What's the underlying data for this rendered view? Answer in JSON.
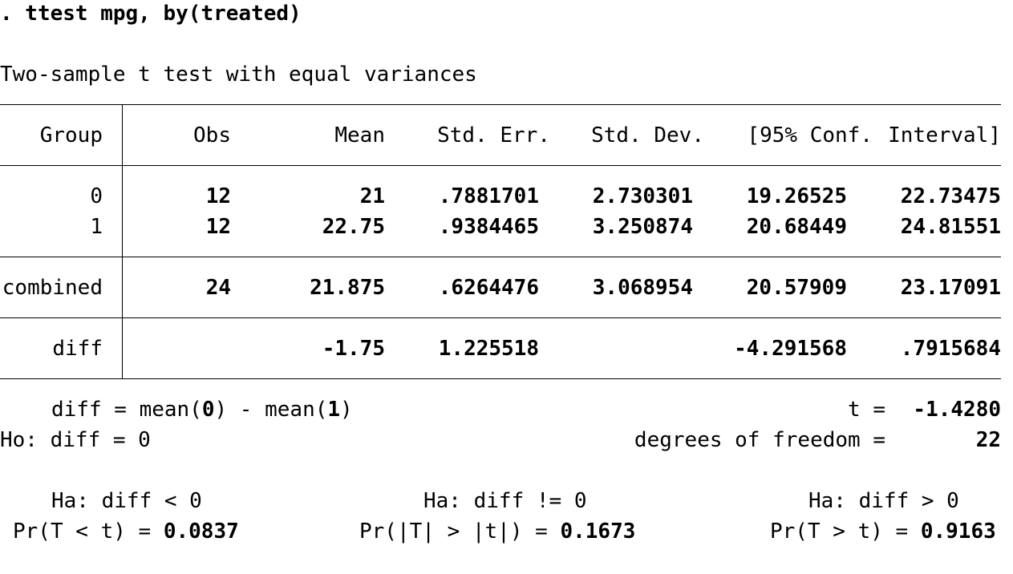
{
  "command": ". ttest mpg, by(treated)",
  "test_title": "Two-sample t test with equal variances",
  "table": {
    "headers": [
      "Group",
      "Obs",
      "Mean",
      "Std. Err.",
      "Std. Dev.",
      "[95% Conf.",
      "Interval]"
    ],
    "rows": [
      {
        "group": "0",
        "obs": "12",
        "mean": "21",
        "se": ".7881701",
        "sd": "2.730301",
        "ci_lo": "19.26525",
        "ci_hi": "22.73475"
      },
      {
        "group": "1",
        "obs": "12",
        "mean": "22.75",
        "se": ".9384465",
        "sd": "3.250874",
        "ci_lo": "20.68449",
        "ci_hi": "24.81551"
      }
    ],
    "combined": {
      "group": "combined",
      "obs": "24",
      "mean": "21.875",
      "se": ".6264476",
      "sd": "3.068954",
      "ci_lo": "20.57909",
      "ci_hi": "23.17091"
    },
    "diff": {
      "group": "diff",
      "obs": "",
      "mean": "-1.75",
      "se": "1.225518",
      "sd": "",
      "ci_lo": "-4.291568",
      "ci_hi": ".7915684"
    }
  },
  "stats": {
    "diff_def_prefix": "diff = mean(",
    "diff_def_g0": "0",
    "diff_def_mid": ") - mean(",
    "diff_def_g1": "1",
    "diff_def_suffix": ")",
    "t_label": "t =",
    "t_value": "-1.4280",
    "ho": "Ho: diff = 0",
    "df_label": "degrees of freedom =",
    "df_value": "22"
  },
  "alternatives": [
    {
      "ha": "Ha: diff < 0",
      "pr_label": "Pr(T < t) =",
      "pr_value": "0.0837"
    },
    {
      "ha": "Ha: diff != 0",
      "pr_label": "Pr(|T| > |t|) =",
      "pr_value": "0.1673"
    },
    {
      "ha": "Ha: diff > 0",
      "pr_label": "Pr(T > t) =",
      "pr_value": "0.9163"
    }
  ]
}
